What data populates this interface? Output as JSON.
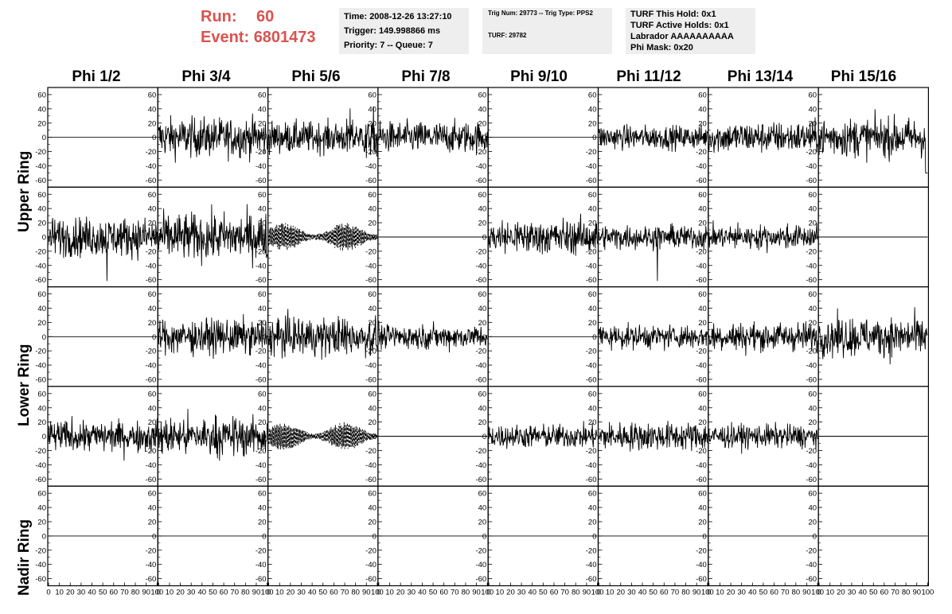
{
  "header": {
    "run_label": "Run:",
    "run_value": "60",
    "event_label": "Event:",
    "event_value": "6801473"
  },
  "info_box_1": {
    "time": "Time: 2008-12-26 13:27:10",
    "trigger": "Trigger: 149.998866 ms",
    "priority": "Priority: 7 -- Queue: 7"
  },
  "info_box_2": {
    "trig": "Trig Num: 29773 -- Trig Type: PPS2",
    "turf": "TURF: 29782"
  },
  "info_box_3": {
    "hold": "TURF This Hold: 0x1",
    "active": "TURF Active Holds: 0x1",
    "labrador": "Labrador AAAAAAAAAA",
    "phimask": "Phi Mask: 0x20"
  },
  "columns": [
    "Phi 1/2",
    "Phi 3/4",
    "Phi 5/6",
    "Phi 7/8",
    "Phi 9/10",
    "Phi 11/12",
    "Phi 13/14",
    "Phi 15/16"
  ],
  "rows": [
    "Upper Ring",
    "Lower Ring",
    "Nadir Ring"
  ],
  "colors": {
    "header_accent": "#d9534f",
    "info_bg": "#eeeeee",
    "trace": "#000000"
  },
  "chart_data": {
    "type": "line",
    "layout": "grid of 5 x 8 waveform panels",
    "x_ticks": [
      0,
      10,
      20,
      30,
      40,
      50,
      60,
      70,
      80,
      90,
      100
    ],
    "y_ticks": [
      60,
      40,
      20,
      0,
      -20,
      -40,
      -60
    ],
    "xlim": [
      0,
      100
    ],
    "ylim": [
      -70,
      70
    ],
    "grid": false,
    "panels": [
      [
        "flat",
        "noise25",
        "noise_spiky",
        "noise20",
        "flat",
        "noise15",
        "noise20",
        "noise25_end_drop"
      ],
      [
        "noise25_dip",
        "noise30",
        "dashed",
        "flat",
        "noise22",
        "noise15_dip",
        "noise15",
        "flat"
      ],
      [
        "flat",
        "noise22",
        "noise25",
        "noise15",
        "flat",
        "noise15",
        "noise18",
        "noise25"
      ],
      [
        "noise20",
        "noise25",
        "dashed",
        "flat",
        "noise15",
        "noise18",
        "noise15",
        "flat"
      ],
      [
        "flat",
        "flat",
        "flat",
        "flat",
        "flat",
        "flat",
        "flat",
        "flat"
      ]
    ]
  }
}
